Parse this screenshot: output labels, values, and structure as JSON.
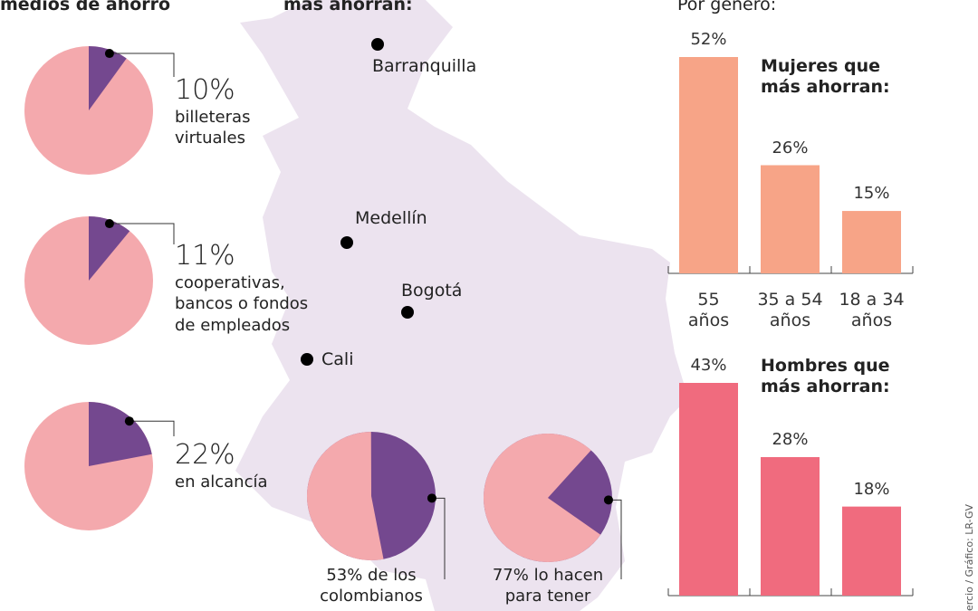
{
  "header": {
    "left_title": "medios de ahorro",
    "center_title": "más ahorran:",
    "right_title": "Por género:",
    "credit": "ercio / Gráfico: LR-GV"
  },
  "map": {
    "cities": [
      "Barranquilla",
      "Medellín",
      "Bogotá",
      "Cali"
    ]
  },
  "chart_data": [
    {
      "type": "pie",
      "values": [
        10
      ],
      "value_labels": [
        "10%"
      ],
      "label": "billeteras\nvirtuales",
      "colors": [
        "#74488f",
        "#f4a9ad"
      ]
    },
    {
      "type": "pie",
      "values": [
        11
      ],
      "value_labels": [
        "11%"
      ],
      "label": "cooperativas,\nbancos o fondos\nde empleados",
      "colors": [
        "#74488f",
        "#f4a9ad"
      ]
    },
    {
      "type": "pie",
      "values": [
        22
      ],
      "value_labels": [
        "22%"
      ],
      "label": "en alcancía",
      "colors": [
        "#74488f",
        "#f4a9ad"
      ]
    },
    {
      "type": "pie",
      "values": [
        53
      ],
      "label": "53% de los\ncolombianos",
      "colors": [
        "#f4a9ad",
        "#74488f"
      ]
    },
    {
      "type": "pie",
      "values": [
        77
      ],
      "label": "77% lo hacen\npara tener",
      "colors": [
        "#f4a9ad",
        "#74488f"
      ]
    },
    {
      "type": "bar",
      "title": "Mujeres que\nmás ahorran:",
      "categories": [
        "55\naños",
        "35 a 54\naños",
        "18 a 34\naños"
      ],
      "values": [
        52,
        26,
        15
      ],
      "value_labels": [
        "52%",
        "26%",
        "15%"
      ],
      "color": "#f7a487"
    },
    {
      "type": "bar",
      "title": "Hombres que\nmás ahorran:",
      "values": [
        43,
        28,
        18
      ],
      "value_labels": [
        "43%",
        "28%",
        "18%"
      ],
      "color": "#f06b7e"
    }
  ]
}
